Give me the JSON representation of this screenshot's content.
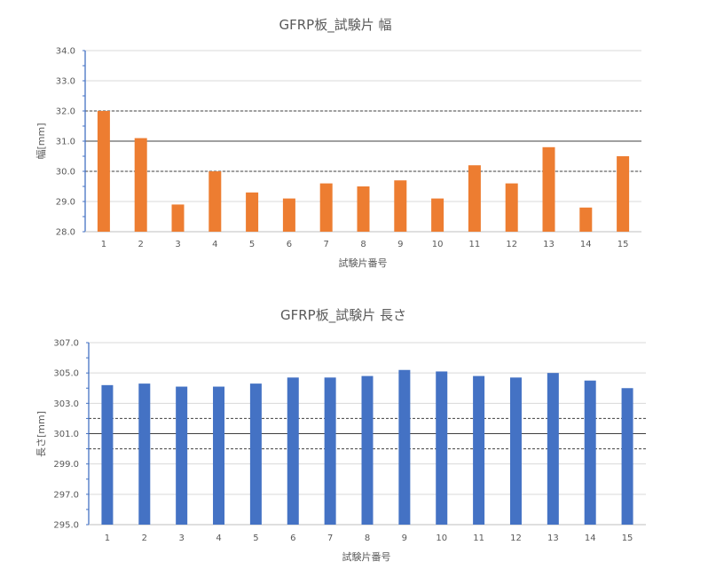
{
  "chart_data": [
    {
      "type": "bar",
      "title": "GFRP板_試験片 幅",
      "xlabel": "試験片番号",
      "ylabel": "幅[mm]",
      "categories": [
        "1",
        "2",
        "3",
        "4",
        "5",
        "6",
        "7",
        "8",
        "9",
        "10",
        "11",
        "12",
        "13",
        "14",
        "15"
      ],
      "values": [
        32.0,
        31.1,
        28.9,
        30.0,
        29.3,
        29.1,
        29.6,
        29.5,
        29.7,
        29.1,
        30.2,
        29.6,
        30.8,
        28.8,
        30.5
      ],
      "ylim": [
        28.0,
        34.0
      ],
      "yticks": [
        "28.0",
        "29.0",
        "30.0",
        "31.0",
        "32.0",
        "33.0",
        "34.0"
      ],
      "reference_lines": [
        {
          "value": 31.0,
          "style": "solid"
        },
        {
          "value": 32.0,
          "style": "dashed"
        },
        {
          "value": 30.0,
          "style": "dashed"
        }
      ],
      "grid": true,
      "bar_color": "#ED7D31",
      "axis_color": "#4472C4"
    },
    {
      "type": "bar",
      "title": "GFRP板_試験片 長さ",
      "xlabel": "試験片番号",
      "ylabel": "長さ[mm]",
      "categories": [
        "1",
        "2",
        "3",
        "4",
        "5",
        "6",
        "7",
        "8",
        "9",
        "10",
        "11",
        "12",
        "13",
        "14",
        "15"
      ],
      "values": [
        304.2,
        304.3,
        304.1,
        304.1,
        304.3,
        304.7,
        304.7,
        304.8,
        305.2,
        305.1,
        304.8,
        304.7,
        305.0,
        304.5,
        304.0
      ],
      "ylim": [
        295.0,
        307.0
      ],
      "yticks": [
        "295.0",
        "297.0",
        "299.0",
        "301.0",
        "303.0",
        "305.0",
        "307.0"
      ],
      "reference_lines": [
        {
          "value": 301.0,
          "style": "solid"
        },
        {
          "value": 302.0,
          "style": "dashed"
        },
        {
          "value": 300.0,
          "style": "dashed"
        }
      ],
      "grid": true,
      "bar_color": "#4472C4",
      "axis_color": "#4472C4"
    }
  ]
}
